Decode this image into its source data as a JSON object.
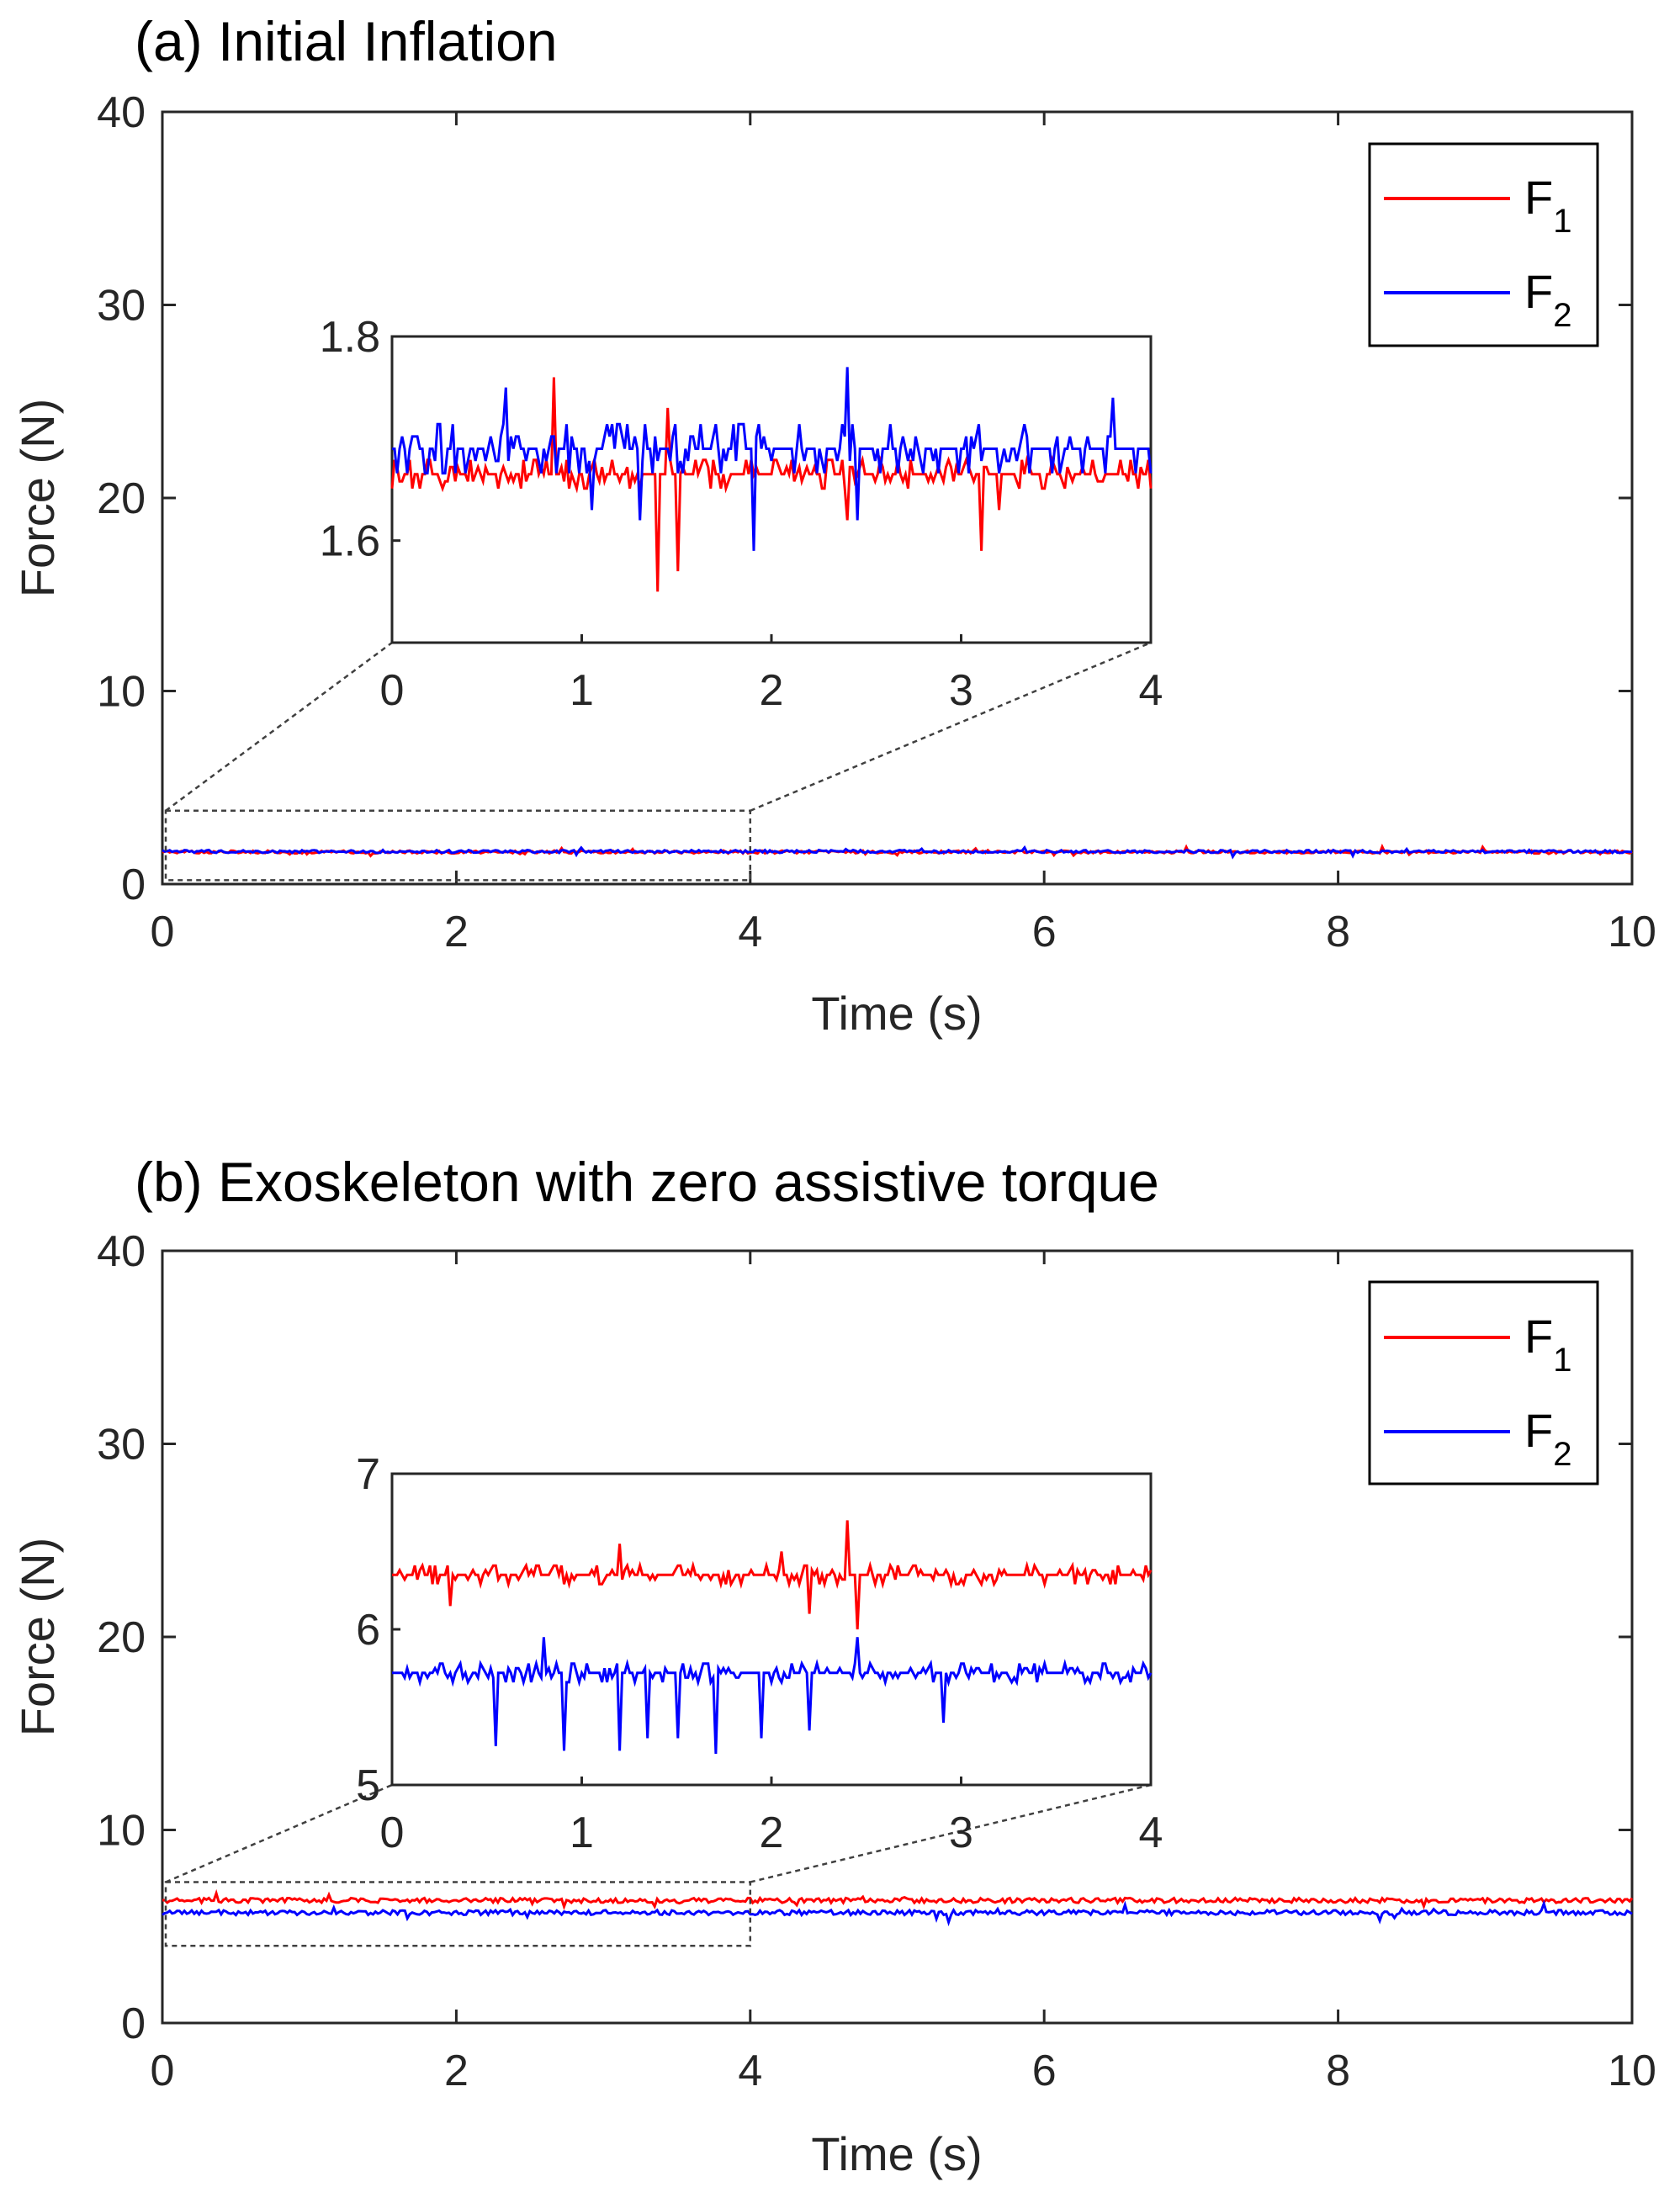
{
  "chart_data": [
    {
      "type": "line",
      "title": "(a) Initial Inflation",
      "xlabel": "Time (s)",
      "ylabel": "Force (N)",
      "xlim": [
        0,
        10
      ],
      "ylim": [
        0,
        40
      ],
      "xticks": [
        "0",
        "2",
        "4",
        "6",
        "8",
        "10"
      ],
      "yticks": [
        "0",
        "10",
        "20",
        "30",
        "40"
      ],
      "legend": {
        "location": "top-right",
        "entries": [
          "F",
          "F"
        ],
        "subscripts": [
          "1",
          "2"
        ]
      },
      "series": [
        {
          "name": "F1",
          "color": "#ff0000",
          "baseline": 1.66,
          "values": [
            1.66,
            1.66,
            1.67,
            1.66,
            1.67,
            1.66,
            1.66,
            1.67,
            1.66,
            1.66,
            1.67,
            1.66
          ]
        },
        {
          "name": "F2",
          "color": "#0000ff",
          "baseline": 1.69,
          "values": [
            1.69,
            1.69,
            1.7,
            1.69,
            1.7,
            1.69,
            1.69,
            1.7,
            1.69,
            1.69,
            1.7,
            1.69
          ]
        }
      ],
      "zoom_box": {
        "xlim": [
          0,
          4
        ],
        "ylim": [
          0.2,
          3.8
        ]
      },
      "inset": {
        "xlim": [
          0,
          4
        ],
        "ylim": [
          1.5,
          1.8
        ],
        "xticks": [
          "0",
          "1",
          "2",
          "3",
          "4"
        ],
        "yticks": [
          "1.6",
          "1.8"
        ],
        "series": [
          {
            "name": "F1",
            "color": "#ff0000",
            "baseline": 1.665,
            "noise": 0.007,
            "dips": [
              [
                1.4,
                1.55
              ],
              [
                1.5,
                1.57
              ],
              [
                3.1,
                1.59
              ],
              [
                2.4,
                1.62
              ],
              [
                3.2,
                1.63
              ],
              [
                0.85,
                1.76
              ],
              [
                1.45,
                1.73
              ]
            ]
          },
          {
            "name": "F2",
            "color": "#0000ff",
            "baseline": 1.69,
            "noise": 0.012,
            "dips": [
              [
                1.05,
                1.63
              ],
              [
                1.3,
                1.62
              ],
              [
                1.9,
                1.59
              ],
              [
                2.45,
                1.62
              ],
              [
                0.6,
                1.75
              ],
              [
                2.4,
                1.77
              ],
              [
                3.8,
                1.74
              ]
            ]
          }
        ]
      }
    },
    {
      "type": "line",
      "title": "(b) Exoskeleton with zero assistive torque",
      "xlabel": "Time (s)",
      "ylabel": "Force (N)",
      "xlim": [
        0,
        10
      ],
      "ylim": [
        0,
        40
      ],
      "xticks": [
        "0",
        "2",
        "4",
        "6",
        "8",
        "10"
      ],
      "yticks": [
        "0",
        "10",
        "20",
        "30",
        "40"
      ],
      "legend": {
        "location": "top-right",
        "entries": [
          "F",
          "F"
        ],
        "subscripts": [
          "1",
          "2"
        ]
      },
      "series": [
        {
          "name": "F1",
          "color": "#ff0000",
          "baseline": 6.35,
          "values": [
            6.35,
            6.35,
            6.4,
            6.35,
            6.35,
            6.4,
            6.35,
            6.35,
            6.35,
            6.4,
            6.35
          ]
        },
        {
          "name": "F2",
          "color": "#0000ff",
          "baseline": 5.72,
          "values": [
            5.72,
            5.7,
            5.72,
            5.72,
            5.7,
            5.72,
            5.72,
            5.7,
            5.72,
            5.72,
            5.72
          ]
        }
      ],
      "zoom_box": {
        "xlim": [
          0,
          4
        ],
        "ylim": [
          4.0,
          7.3
        ]
      },
      "inset": {
        "xlim": [
          0,
          4
        ],
        "ylim": [
          5,
          7
        ],
        "xticks": [
          "0",
          "1",
          "2",
          "3",
          "4"
        ],
        "yticks": [
          "5",
          "6",
          "7"
        ],
        "series": [
          {
            "name": "F1",
            "color": "#ff0000",
            "baseline": 6.35,
            "noise": 0.03,
            "dips": [
              [
                0.3,
                6.15
              ],
              [
                2.2,
                6.1
              ],
              [
                2.4,
                6.7
              ],
              [
                2.45,
                6.0
              ],
              [
                1.2,
                6.55
              ],
              [
                2.05,
                6.5
              ]
            ]
          },
          {
            "name": "F2",
            "color": "#0000ff",
            "baseline": 5.72,
            "noise": 0.03,
            "dips": [
              [
                0.55,
                5.25
              ],
              [
                0.9,
                5.22
              ],
              [
                1.2,
                5.22
              ],
              [
                1.5,
                5.3
              ],
              [
                1.7,
                5.2
              ],
              [
                1.35,
                5.3
              ],
              [
                1.95,
                5.3
              ],
              [
                2.2,
                5.35
              ],
              [
                0.8,
                5.95
              ],
              [
                2.45,
                5.95
              ],
              [
                2.9,
                5.4
              ]
            ]
          }
        ]
      }
    }
  ]
}
